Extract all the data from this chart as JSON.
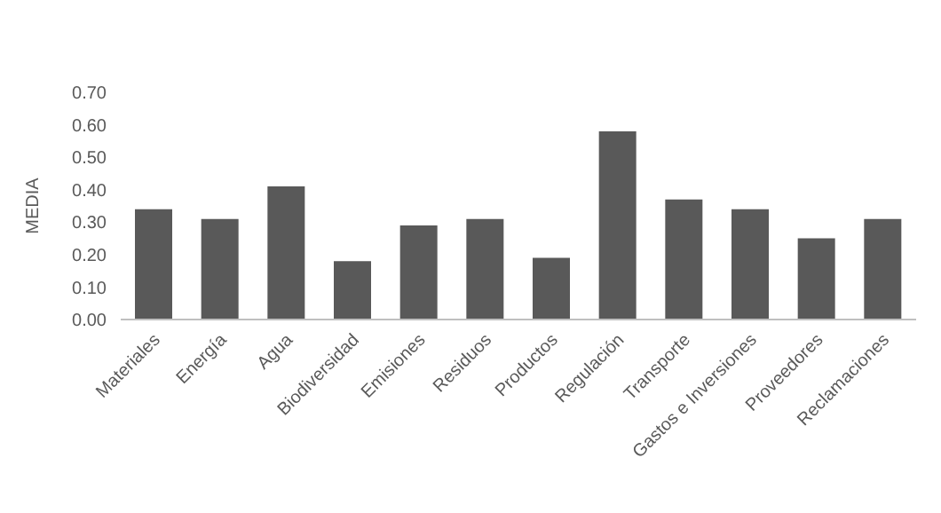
{
  "chart_data": {
    "type": "bar",
    "ylabel": "MEDIA",
    "categories": [
      "Materiales",
      "Energía",
      "Agua",
      "Biodiversidad",
      "Emisiones",
      "Residuos",
      "Productos",
      "Regulación",
      "Transporte",
      "Gastos e Inversiones",
      "Proveedores",
      "Reclamaciones"
    ],
    "values": [
      0.34,
      0.31,
      0.41,
      0.18,
      0.29,
      0.31,
      0.19,
      0.58,
      0.37,
      0.34,
      0.25,
      0.31
    ],
    "color": "#595959",
    "ylim": [
      0,
      0.7
    ],
    "yticks": [
      {
        "value": 0,
        "label": "0.00"
      },
      {
        "value": 0.1,
        "label": "0.10"
      },
      {
        "value": 0.2,
        "label": "0.20"
      },
      {
        "value": 0.3,
        "label": "0.30"
      },
      {
        "value": 0.4,
        "label": "0.40"
      },
      {
        "value": 0.5,
        "label": "0.50"
      },
      {
        "value": 0.6,
        "label": "0.60"
      },
      {
        "value": 0.7,
        "label": "0.70"
      }
    ],
    "grid": false
  }
}
